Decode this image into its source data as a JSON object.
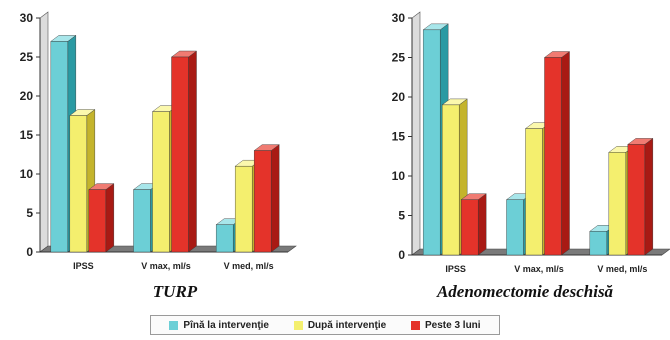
{
  "chart_data": [
    {
      "type": "bar",
      "title": "TURP",
      "categories": [
        "IPSS",
        "V max, ml/s",
        "V med, ml/s"
      ],
      "series": [
        {
          "name": "Pînă la intervenţie",
          "values": [
            27,
            8,
            3.5
          ]
        },
        {
          "name": "După intervenţie",
          "values": [
            17.5,
            18,
            11
          ]
        },
        {
          "name": "Peste 3 luni",
          "values": [
            8,
            25,
            13
          ]
        }
      ],
      "ylim": [
        0,
        30
      ],
      "yticks": [
        "0",
        "5",
        "10",
        "15",
        "20",
        "25",
        "30"
      ],
      "grid": false
    },
    {
      "type": "bar",
      "title": "Adenomectomie deschisă",
      "categories": [
        "IPSS",
        "V max, ml/s",
        "V med, ml/s"
      ],
      "series": [
        {
          "name": "Pînă la intervenţie",
          "values": [
            28.5,
            7,
            3
          ]
        },
        {
          "name": "După intervenţie",
          "values": [
            19,
            16,
            13
          ]
        },
        {
          "name": "Peste 3 luni",
          "values": [
            7,
            25,
            14
          ]
        }
      ],
      "ylim": [
        0,
        30
      ],
      "yticks": [
        "0",
        "5",
        "10",
        "15",
        "20",
        "25",
        "30"
      ],
      "grid": false
    }
  ],
  "legend": [
    {
      "label": "Pînă la intervenţie",
      "color": "#6ccfd6"
    },
    {
      "label": "După intervenţie",
      "color": "#f4ef6e"
    },
    {
      "label": "Peste 3 luni",
      "color": "#e4332a"
    }
  ],
  "colors": {
    "front": [
      "#6ccfd6",
      "#f4ef6e",
      "#e4332a"
    ],
    "side": [
      "#2a9aa3",
      "#c4b42c",
      "#a81a14"
    ],
    "top": [
      "#a8e6ea",
      "#fbf8ad",
      "#f07b72"
    ],
    "floor": "#7a7a7a",
    "wall": "#dcdcdc"
  }
}
